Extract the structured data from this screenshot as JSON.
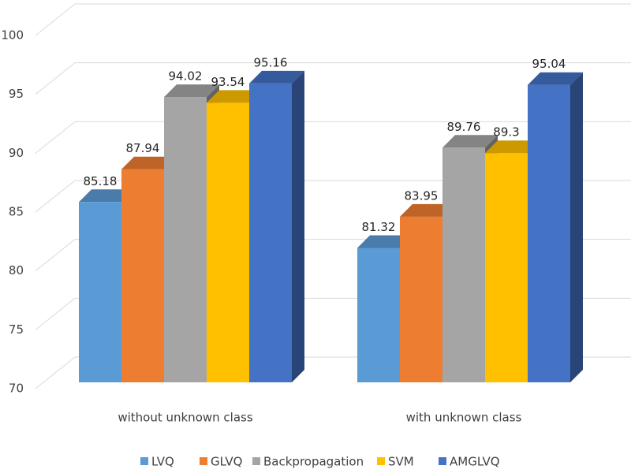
{
  "chart_data": {
    "type": "bar3d",
    "categories": [
      "without unknown class",
      "with unknown class"
    ],
    "series": [
      {
        "name": "LVQ",
        "color": "#5B9BD5",
        "values": [
          85.18,
          81.32
        ]
      },
      {
        "name": "GLVQ",
        "color": "#ED7D31",
        "values": [
          87.94,
          83.95
        ]
      },
      {
        "name": "Backpropagation",
        "color": "#A5A5A5",
        "values": [
          94.02,
          89.76
        ]
      },
      {
        "name": "SVM",
        "color": "#FFC000",
        "values": [
          93.54,
          89.3
        ]
      },
      {
        "name": "AMGLVQ",
        "color": "#4472C4",
        "values": [
          95.16,
          95.04
        ]
      }
    ],
    "ylim": [
      70,
      100
    ],
    "yticks": [
      70,
      75,
      80,
      85,
      90,
      95,
      100
    ],
    "grid": true,
    "legend": "bottom"
  }
}
